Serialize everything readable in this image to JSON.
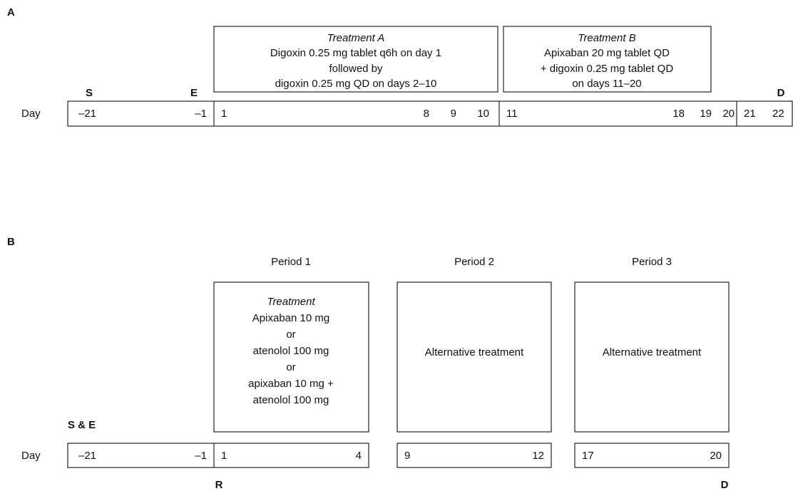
{
  "panel_a": {
    "label": "A",
    "treatment_a": {
      "title": "Treatment A",
      "lines": [
        "Digoxin 0.25 mg tablet q6h on day 1",
        "followed by",
        "digoxin 0.25 mg QD on days 2–10"
      ]
    },
    "treatment_b": {
      "title": "Treatment B",
      "lines": [
        "Apixaban 20 mg tablet QD",
        "+ digoxin 0.25 mg tablet QD",
        "on days 11–20"
      ]
    },
    "markers": {
      "screening": "S",
      "enrollment": "E",
      "discharge": "D"
    },
    "day_label": "Day",
    "days": [
      "–21",
      "–1",
      "1",
      "8",
      "9",
      "10",
      "11",
      "18",
      "19",
      "20",
      "21",
      "22"
    ]
  },
  "panel_b": {
    "label": "B",
    "periods": [
      "Period 1",
      "Period 2",
      "Period 3"
    ],
    "treatment": {
      "title": "Treatment",
      "lines": [
        "Apixaban 10 mg",
        "or",
        "atenolol 100 mg",
        "or",
        "apixaban 10 mg +",
        "atenolol 100 mg"
      ]
    },
    "alternatives": [
      "Alternative treatment",
      "Alternative treatment"
    ],
    "markers": {
      "screening_enrollment": "S & E",
      "randomization": "R",
      "discharge": "D"
    },
    "day_label": "Day",
    "days": [
      "–21",
      "–1",
      "1",
      "4",
      "9",
      "12",
      "17",
      "20"
    ]
  }
}
